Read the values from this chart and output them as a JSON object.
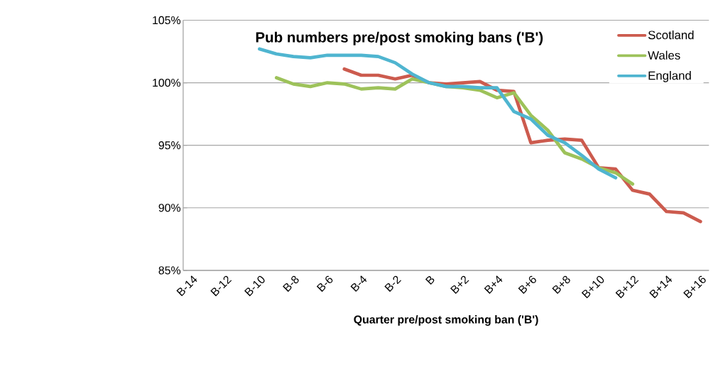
{
  "chart_data": {
    "type": "line",
    "title": "Pub numbers pre/post smoking bans ('B')",
    "xlabel": "Quarter pre/post smoking ban ('B')",
    "categories": [
      "B-14",
      null,
      "B-12",
      null,
      "B-10",
      null,
      "B-8",
      null,
      "B-6",
      null,
      "B-4",
      null,
      "B-2",
      null,
      "B",
      null,
      "B+2",
      null,
      "B+4",
      null,
      "B+6",
      null,
      "B+8",
      null,
      "B+10",
      null,
      "B+12",
      null,
      "B+14",
      null,
      "B+16"
    ],
    "series": [
      {
        "name": "Scotland",
        "color": "#cc5b4e",
        "values": [
          null,
          null,
          null,
          null,
          null,
          null,
          null,
          null,
          null,
          101.1,
          100.6,
          100.6,
          100.3,
          100.6,
          100.0,
          99.9,
          100.0,
          100.1,
          99.4,
          99.3,
          95.2,
          95.4,
          95.5,
          95.4,
          93.2,
          93.1,
          91.4,
          91.1,
          89.7,
          89.6,
          88.9
        ]
      },
      {
        "name": "Wales",
        "color": "#9dc25a",
        "values": [
          null,
          null,
          null,
          null,
          null,
          100.4,
          99.9,
          99.7,
          100.0,
          99.9,
          99.5,
          99.6,
          99.5,
          100.3,
          100.0,
          99.7,
          99.6,
          99.4,
          98.8,
          99.2,
          97.4,
          96.2,
          94.4,
          93.9,
          93.2,
          92.8,
          91.9,
          null,
          null,
          null,
          null
        ]
      },
      {
        "name": "England",
        "color": "#4fb5d0",
        "values": [
          null,
          null,
          null,
          null,
          102.7,
          102.3,
          102.1,
          102.0,
          102.2,
          102.2,
          102.2,
          102.1,
          101.6,
          100.7,
          100.0,
          99.7,
          99.7,
          99.6,
          99.6,
          97.7,
          97.1,
          95.8,
          95.2,
          94.2,
          93.1,
          92.4,
          null,
          null,
          null,
          null,
          null
        ]
      }
    ],
    "ylim": [
      85,
      105
    ],
    "yticks": [
      {
        "value": 85,
        "label": "85%"
      },
      {
        "value": 90,
        "label": "90%"
      },
      {
        "value": 95,
        "label": "95%"
      },
      {
        "value": 100,
        "label": "100%"
      },
      {
        "value": 105,
        "label": "105%"
      }
    ],
    "grid": "y",
    "legend": "top right",
    "marker": "none",
    "line_style": "solid"
  }
}
